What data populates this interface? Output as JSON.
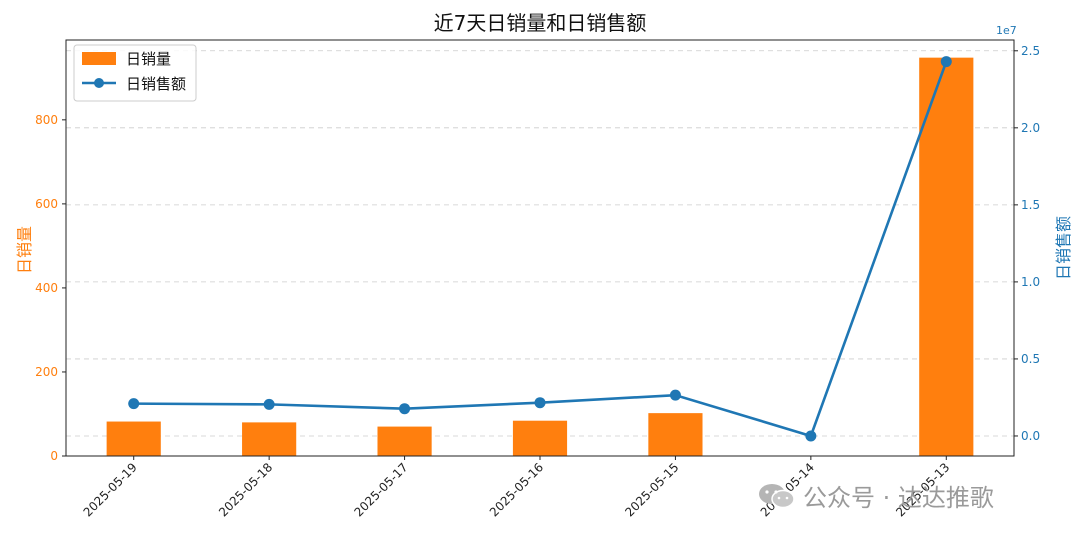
{
  "chart_data": {
    "type": "bar+line",
    "title": "近7天日销量和日销售额",
    "categories": [
      "2025-05-19",
      "2025-05-18",
      "2025-05-17",
      "2025-05-16",
      "2025-05-15",
      "2025-05-14",
      "2025-05-13"
    ],
    "series": [
      {
        "name": "日销量",
        "type": "bar",
        "axis": "left",
        "color": "#ff7f0e",
        "values": [
          82,
          80,
          70,
          84,
          102,
          0,
          948
        ]
      },
      {
        "name": "日销售额",
        "type": "line",
        "axis": "right",
        "color": "#1f77b4",
        "values": [
          2100000,
          2050000,
          1770000,
          2160000,
          2650000,
          0,
          24300000
        ]
      }
    ],
    "ylabel_left": "日销量",
    "ylabel_right": "日销售额",
    "ylim_left": [
      0,
      990
    ],
    "yticks_left": [
      "0",
      "200",
      "400",
      "600",
      "800"
    ],
    "yticks_left_values": [
      0,
      200,
      400,
      600,
      800
    ],
    "ylim_right": [
      -1300000,
      25700000
    ],
    "yticks_right": [
      "0.0",
      "0.5",
      "1.0",
      "1.5",
      "2.0",
      "2.5"
    ],
    "yticks_right_values": [
      0,
      5000000,
      10000000,
      15000000,
      20000000,
      25000000
    ],
    "right_axis_offset_text": "1e7",
    "grid": "horizontal-dashed",
    "legend_position": "upper-left"
  },
  "watermark": {
    "text": "公众号 · 达达推歌",
    "icon": "wechat-icon"
  }
}
